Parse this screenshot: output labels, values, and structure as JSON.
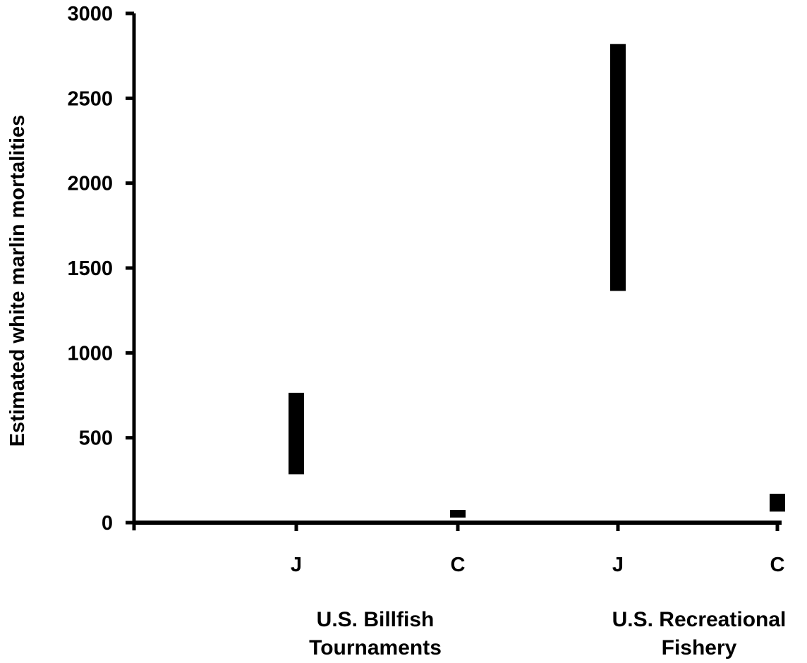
{
  "chart_data": {
    "type": "range-bar",
    "ylabel": "Estimated white marlin mortalities",
    "xlabel": "",
    "ylim": [
      0,
      3000
    ],
    "yticks": [
      0,
      500,
      1000,
      1500,
      2000,
      2500,
      3000
    ],
    "yticklabels": [
      "0",
      "500",
      "1000",
      "1500",
      "2000",
      "2500",
      "3000"
    ],
    "categories": [
      "J",
      "C",
      "J",
      "C"
    ],
    "groups": [
      {
        "label_line1": "U.S. Billfish",
        "label_line2": "Tournaments"
      },
      {
        "label_line1": "U.S. Recreational",
        "label_line2": "Fishery"
      }
    ],
    "ranges": [
      {
        "category": "J",
        "group": "U.S. Billfish Tournaments",
        "low": 285,
        "high": 765
      },
      {
        "category": "C",
        "group": "U.S. Billfish Tournaments",
        "low": 30,
        "high": 75
      },
      {
        "category": "J",
        "group": "U.S. Recreational Fishery",
        "low": 1365,
        "high": 2820
      },
      {
        "category": "C",
        "group": "U.S. Recreational Fishery",
        "low": 65,
        "high": 170
      }
    ],
    "grid": false,
    "legend": "none",
    "bar_color": "#000000"
  }
}
